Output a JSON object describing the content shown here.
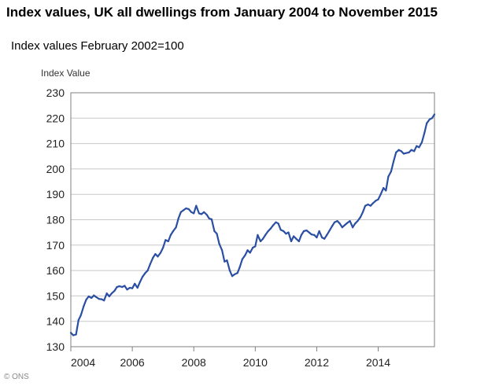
{
  "chart_data": {
    "type": "line",
    "title": "Index values, UK all dwellings from January 2004 to November 2015",
    "subtitle": "Index values February 2002=100",
    "ylabel": "Index Value",
    "xlabel": "",
    "ylim": [
      130,
      230
    ],
    "xlim": [
      2004,
      2015.83
    ],
    "yticks": [
      130,
      140,
      150,
      160,
      170,
      180,
      190,
      200,
      210,
      220,
      230
    ],
    "xticks": [
      2004,
      2006,
      2008,
      2010,
      2012,
      2014
    ],
    "grid": "horizontal",
    "line_color": "#2b4fa3",
    "series": [
      {
        "name": "UK all dwellings",
        "x": [
          2004.0,
          2004.08,
          2004.17,
          2004.25,
          2004.33,
          2004.42,
          2004.5,
          2004.58,
          2004.67,
          2004.75,
          2004.83,
          2004.92,
          2005.0,
          2005.08,
          2005.17,
          2005.25,
          2005.33,
          2005.42,
          2005.5,
          2005.58,
          2005.67,
          2005.75,
          2005.83,
          2005.92,
          2006.0,
          2006.08,
          2006.17,
          2006.25,
          2006.33,
          2006.42,
          2006.5,
          2006.58,
          2006.67,
          2006.75,
          2006.83,
          2006.92,
          2007.0,
          2007.08,
          2007.17,
          2007.25,
          2007.33,
          2007.42,
          2007.5,
          2007.58,
          2007.67,
          2007.75,
          2007.83,
          2007.92,
          2008.0,
          2008.08,
          2008.17,
          2008.25,
          2008.33,
          2008.42,
          2008.5,
          2008.58,
          2008.67,
          2008.75,
          2008.83,
          2008.92,
          2009.0,
          2009.08,
          2009.17,
          2009.25,
          2009.33,
          2009.42,
          2009.5,
          2009.58,
          2009.67,
          2009.75,
          2009.83,
          2009.92,
          2010.0,
          2010.08,
          2010.17,
          2010.25,
          2010.33,
          2010.42,
          2010.5,
          2010.58,
          2010.67,
          2010.75,
          2010.83,
          2010.92,
          2011.0,
          2011.08,
          2011.17,
          2011.25,
          2011.33,
          2011.42,
          2011.5,
          2011.58,
          2011.67,
          2011.75,
          2011.83,
          2011.92,
          2012.0,
          2012.08,
          2012.17,
          2012.25,
          2012.33,
          2012.42,
          2012.5,
          2012.58,
          2012.67,
          2012.75,
          2012.83,
          2012.92,
          2013.0,
          2013.08,
          2013.17,
          2013.25,
          2013.33,
          2013.42,
          2013.5,
          2013.58,
          2013.67,
          2013.75,
          2013.83,
          2013.92,
          2014.0,
          2014.08,
          2014.17,
          2014.25,
          2014.33,
          2014.42,
          2014.5,
          2014.58,
          2014.67,
          2014.75,
          2014.83,
          2014.92,
          2015.0,
          2015.08,
          2015.17,
          2015.25,
          2015.33,
          2015.42,
          2015.5,
          2015.58,
          2015.67,
          2015.75,
          2015.83
        ],
        "values": [
          135.5,
          134.5,
          134.8,
          140.5,
          142.5,
          146.0,
          148.5,
          149.8,
          149.2,
          150.2,
          149.5,
          148.8,
          148.7,
          148.2,
          151.0,
          149.8,
          151.0,
          152.0,
          153.5,
          153.8,
          153.5,
          154.0,
          152.5,
          153.2,
          153.0,
          154.8,
          153.2,
          155.5,
          157.5,
          159.0,
          160.0,
          162.5,
          165.0,
          166.5,
          165.5,
          167.0,
          169.0,
          172.0,
          171.5,
          174.0,
          175.5,
          177.0,
          180.5,
          183.0,
          183.8,
          184.5,
          184.2,
          183.0,
          182.5,
          185.5,
          182.5,
          182.2,
          183.0,
          182.0,
          180.5,
          180.2,
          175.5,
          174.5,
          170.5,
          168.0,
          163.5,
          164.0,
          160.0,
          157.8,
          158.5,
          159.0,
          161.5,
          164.5,
          166.0,
          168.0,
          167.0,
          169.0,
          169.5,
          174.0,
          171.5,
          172.5,
          174.0,
          175.5,
          176.5,
          177.8,
          179.0,
          178.5,
          176.0,
          175.5,
          174.5,
          175.0,
          171.5,
          173.5,
          172.5,
          171.5,
          174.0,
          175.5,
          175.8,
          175.0,
          174.2,
          174.0,
          173.0,
          175.5,
          173.0,
          172.5,
          174.0,
          175.8,
          177.5,
          179.0,
          179.5,
          178.5,
          177.0,
          178.0,
          178.8,
          179.5,
          177.0,
          178.5,
          179.5,
          181.0,
          183.0,
          185.5,
          186.0,
          185.5,
          186.5,
          187.5,
          188.0,
          190.0,
          192.5,
          191.5,
          197.0,
          199.0,
          203.0,
          206.5,
          207.5,
          207.0,
          206.0,
          206.3,
          206.5,
          207.5,
          207.0,
          209.0,
          208.5,
          210.5,
          214.0,
          218.0,
          219.5,
          220.0,
          221.5
        ]
      }
    ]
  },
  "footer": {
    "credit": "© ONS"
  }
}
